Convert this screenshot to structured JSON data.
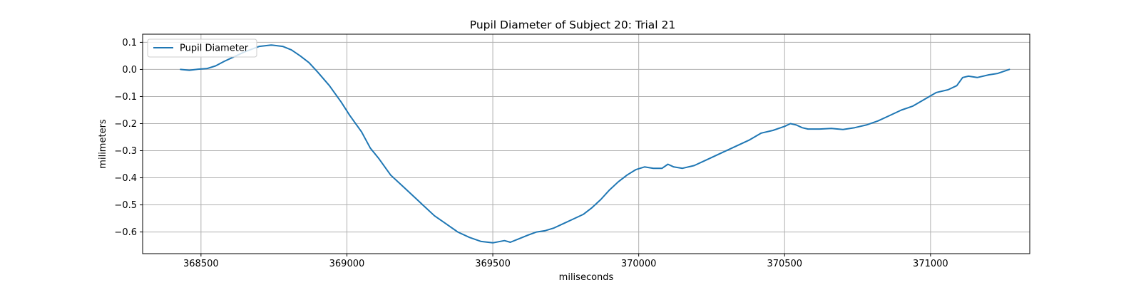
{
  "chart_data": {
    "type": "line",
    "title": "Pupil Diameter of Subject 20: Trial 21",
    "xlabel": "miliseconds",
    "ylabel": "milimeters",
    "xlim": [
      368300,
      371340
    ],
    "ylim": [
      -0.68,
      0.13
    ],
    "xticks": [
      368500,
      369000,
      369500,
      370000,
      370500,
      371000
    ],
    "xtick_labels": [
      "368500",
      "369000",
      "369500",
      "370000",
      "370500",
      "371000"
    ],
    "yticks": [
      0.1,
      0.0,
      -0.1,
      -0.2,
      -0.3,
      -0.4,
      -0.5,
      -0.6
    ],
    "ytick_labels": [
      "0.1",
      "0.0",
      "−0.1",
      "−0.2",
      "−0.3",
      "−0.4",
      "−0.5",
      "−0.6"
    ],
    "grid": true,
    "legend_position": "top-left",
    "series": [
      {
        "name": "Pupil Diameter",
        "color": "#1f77b4",
        "x": [
          368430,
          368460,
          368490,
          368520,
          368550,
          368580,
          368610,
          368650,
          368700,
          368740,
          368780,
          368810,
          368840,
          368870,
          368900,
          368940,
          368980,
          369010,
          369050,
          369080,
          369110,
          369150,
          369190,
          369230,
          369270,
          369300,
          369340,
          369380,
          369420,
          369460,
          369500,
          369540,
          369560,
          369590,
          369620,
          369650,
          369680,
          369710,
          369740,
          369780,
          369810,
          369840,
          369870,
          369900,
          369930,
          369960,
          369990,
          370020,
          370050,
          370080,
          370100,
          370120,
          370150,
          370190,
          370230,
          370280,
          370330,
          370380,
          370420,
          370460,
          370500,
          370520,
          370540,
          370560,
          370580,
          370620,
          370660,
          370700,
          370740,
          370780,
          370820,
          370860,
          370900,
          370940,
          370980,
          371020,
          371060,
          371090,
          371110,
          371130,
          371160,
          371200,
          371230,
          371270
        ],
        "values": [
          0.0,
          -0.003,
          0.001,
          0.003,
          0.013,
          0.03,
          0.045,
          0.065,
          0.085,
          0.09,
          0.085,
          0.072,
          0.05,
          0.025,
          -0.01,
          -0.06,
          -0.12,
          -0.17,
          -0.23,
          -0.29,
          -0.33,
          -0.39,
          -0.43,
          -0.47,
          -0.51,
          -0.54,
          -0.57,
          -0.6,
          -0.62,
          -0.635,
          -0.64,
          -0.632,
          -0.638,
          -0.625,
          -0.612,
          -0.6,
          -0.595,
          -0.585,
          -0.57,
          -0.55,
          -0.535,
          -0.51,
          -0.48,
          -0.445,
          -0.415,
          -0.39,
          -0.37,
          -0.36,
          -0.365,
          -0.365,
          -0.35,
          -0.36,
          -0.365,
          -0.355,
          -0.335,
          -0.31,
          -0.285,
          -0.26,
          -0.235,
          -0.225,
          -0.21,
          -0.2,
          -0.205,
          -0.215,
          -0.22,
          -0.22,
          -0.218,
          -0.222,
          -0.215,
          -0.205,
          -0.19,
          -0.17,
          -0.15,
          -0.135,
          -0.11,
          -0.085,
          -0.075,
          -0.06,
          -0.03,
          -0.025,
          -0.03,
          -0.02,
          -0.015,
          0.0
        ]
      }
    ]
  }
}
